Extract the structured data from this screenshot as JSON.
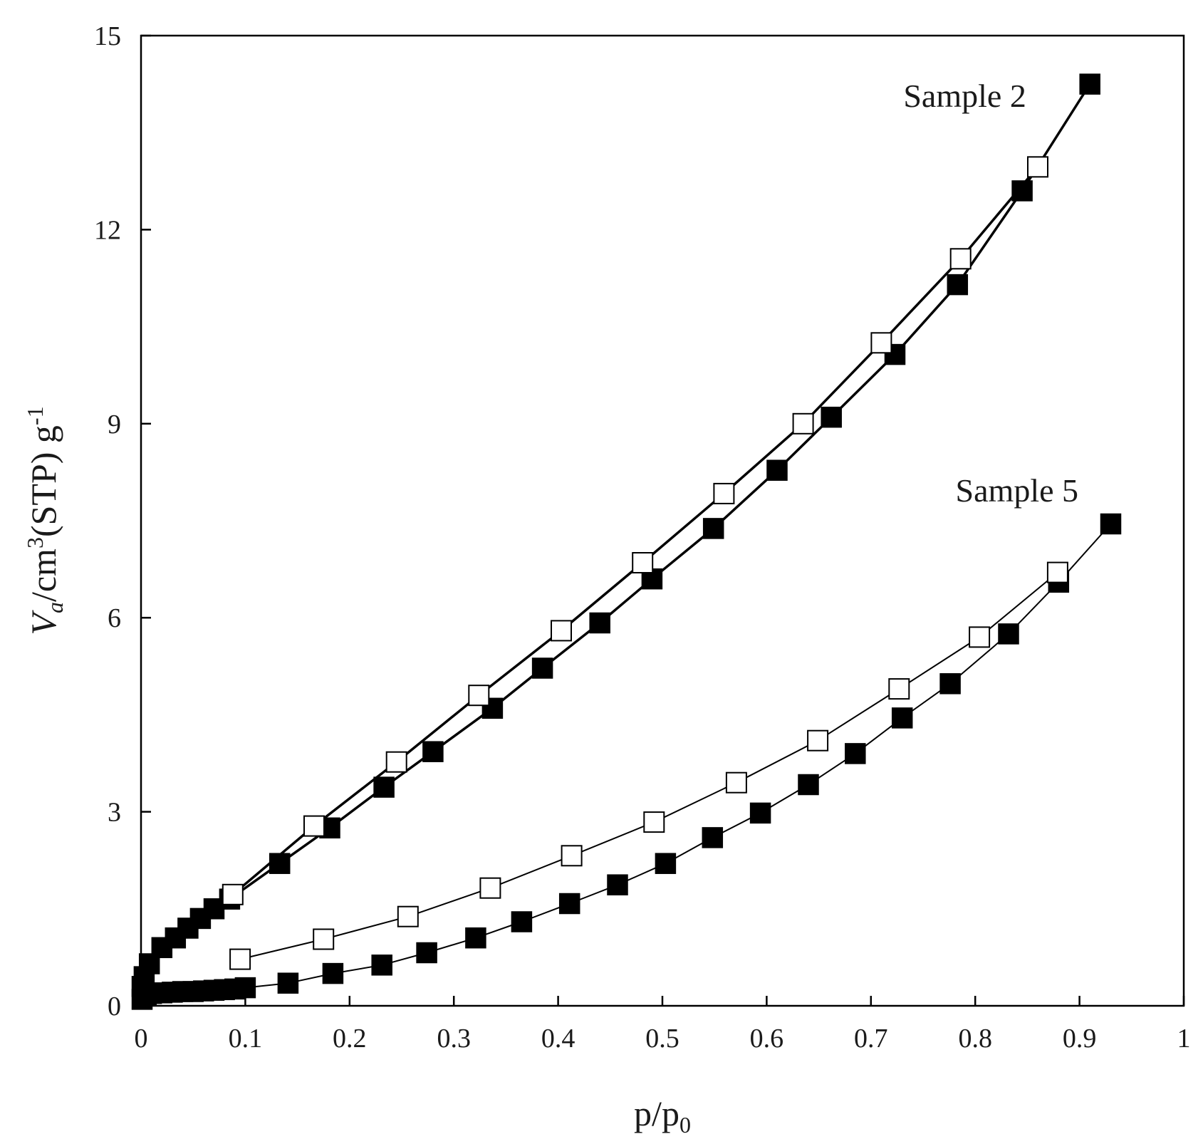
{
  "chart_data": {
    "type": "scatter",
    "xlabel": "p/p",
    "xlabel_sub": "0",
    "ylabel_var": "V",
    "ylabel_var_sub": "a",
    "ylabel_mid": "/cm",
    "ylabel_mid_sup": "3",
    "ylabel_end": "(STP) g",
    "ylabel_end_sup": "-1",
    "xlim": [
      0,
      1
    ],
    "ylim": [
      0,
      15
    ],
    "x_ticks": [
      "0",
      "0.1",
      "0.2",
      "0.3",
      "0.4",
      "0.5",
      "0.6",
      "0.7",
      "0.8",
      "0.9",
      "1"
    ],
    "y_ticks": [
      "0",
      "3",
      "6",
      "9",
      "12",
      "15"
    ],
    "grid": false,
    "legend": "none",
    "annotations": [
      {
        "text": "Sample 2",
        "x": 0.79,
        "y": 13.9
      },
      {
        "text": "Sample 5",
        "x": 0.84,
        "y": 7.8
      }
    ],
    "series": [
      {
        "marker": "filled-square",
        "line_weight": "bold",
        "values": [
          [
            0.001,
            0.3
          ],
          [
            0.003,
            0.45
          ],
          [
            0.008,
            0.65
          ],
          [
            0.02,
            0.9
          ],
          [
            0.033,
            1.05
          ],
          [
            0.045,
            1.2
          ],
          [
            0.057,
            1.35
          ],
          [
            0.07,
            1.5
          ],
          [
            0.085,
            1.65
          ],
          [
            0.133,
            2.2
          ],
          [
            0.181,
            2.75
          ],
          [
            0.233,
            3.38
          ],
          [
            0.28,
            3.93
          ],
          [
            0.337,
            4.6
          ],
          [
            0.385,
            5.22
          ],
          [
            0.44,
            5.92
          ],
          [
            0.49,
            6.6
          ],
          [
            0.549,
            7.38
          ],
          [
            0.61,
            8.28
          ],
          [
            0.662,
            9.1
          ],
          [
            0.723,
            10.07
          ],
          [
            0.783,
            11.15
          ],
          [
            0.845,
            12.6
          ],
          [
            0.91,
            14.25
          ]
        ]
      },
      {
        "marker": "open-square",
        "line_weight": "bold",
        "values": [
          [
            0.088,
            1.72
          ],
          [
            0.166,
            2.78
          ],
          [
            0.245,
            3.77
          ],
          [
            0.324,
            4.8
          ],
          [
            0.403,
            5.8
          ],
          [
            0.481,
            6.85
          ],
          [
            0.559,
            7.92
          ],
          [
            0.635,
            9.0
          ],
          [
            0.71,
            10.25
          ],
          [
            0.786,
            11.55
          ],
          [
            0.86,
            12.97
          ]
        ]
      },
      {
        "marker": "filled-square",
        "line_weight": "thin",
        "values": [
          [
            0.001,
            0.1
          ],
          [
            0.005,
            0.17
          ],
          [
            0.01,
            0.19
          ],
          [
            0.02,
            0.2
          ],
          [
            0.03,
            0.21
          ],
          [
            0.04,
            0.22
          ],
          [
            0.05,
            0.22
          ],
          [
            0.06,
            0.23
          ],
          [
            0.07,
            0.24
          ],
          [
            0.08,
            0.25
          ],
          [
            0.09,
            0.26
          ],
          [
            0.1,
            0.28
          ],
          [
            0.141,
            0.35
          ],
          [
            0.184,
            0.5
          ],
          [
            0.231,
            0.63
          ],
          [
            0.274,
            0.82
          ],
          [
            0.321,
            1.05
          ],
          [
            0.365,
            1.3
          ],
          [
            0.411,
            1.58
          ],
          [
            0.457,
            1.87
          ],
          [
            0.503,
            2.2
          ],
          [
            0.548,
            2.6
          ],
          [
            0.594,
            2.98
          ],
          [
            0.64,
            3.42
          ],
          [
            0.685,
            3.9
          ],
          [
            0.73,
            4.45
          ],
          [
            0.776,
            4.98
          ],
          [
            0.832,
            5.75
          ],
          [
            0.88,
            6.55
          ],
          [
            0.93,
            7.45
          ]
        ]
      },
      {
        "marker": "open-square",
        "line_weight": "thin",
        "values": [
          [
            0.095,
            0.72
          ],
          [
            0.175,
            1.03
          ],
          [
            0.256,
            1.38
          ],
          [
            0.335,
            1.82
          ],
          [
            0.413,
            2.32
          ],
          [
            0.492,
            2.84
          ],
          [
            0.571,
            3.45
          ],
          [
            0.649,
            4.1
          ],
          [
            0.727,
            4.9
          ],
          [
            0.804,
            5.7
          ],
          [
            0.879,
            6.7
          ]
        ]
      }
    ]
  }
}
